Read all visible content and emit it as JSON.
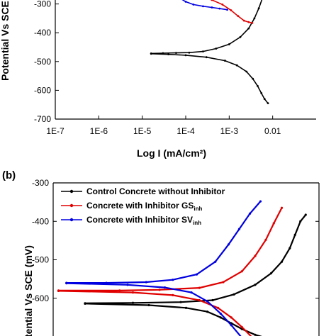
{
  "chart_data": [
    {
      "panel": "(a)",
      "type": "line",
      "xscale": "log",
      "xlim": [
        1e-07,
        0.1
      ],
      "ylim": [
        -700,
        -200
      ],
      "xticks": [
        1e-07,
        1e-06,
        1e-05,
        0.0001,
        0.001,
        0.01
      ],
      "xtick_labels": [
        "1E-7",
        "1E-6",
        "1E-5",
        "1E-4",
        "1E-3",
        "0.01"
      ],
      "yticks": [
        -300,
        -400,
        -500,
        -600,
        -700
      ],
      "ytick_labels": [
        "-300",
        "-400",
        "-500",
        "-600",
        "-700"
      ],
      "xlabel": "Log I (mA/cm²)",
      "ylabel": "Potential Vs SCE (mV)",
      "series": [
        {
          "color": "#000000",
          "points": [
            [
              1.6e-05,
              -472
            ],
            [
              3e-05,
              -471
            ],
            [
              6e-05,
              -470
            ],
            [
              0.00012,
              -469
            ],
            [
              0.00025,
              -465
            ],
            [
              0.0005,
              -455
            ],
            [
              0.001,
              -440
            ],
            [
              0.0018,
              -415
            ],
            [
              0.0028,
              -385
            ],
            [
              0.0038,
              -350
            ],
            [
              0.0048,
              -315
            ],
            [
              0.0058,
              -280
            ],
            [
              0.0068,
              -250
            ],
            [
              0.0078,
              -230
            ]
          ]
        },
        {
          "color": "#000000",
          "points": [
            [
              1.6e-05,
              -473
            ],
            [
              4e-05,
              -475
            ],
            [
              0.0001,
              -478
            ],
            [
              0.0003,
              -485
            ],
            [
              0.0008,
              -497
            ],
            [
              0.0015,
              -513
            ],
            [
              0.0025,
              -535
            ],
            [
              0.0035,
              -560
            ],
            [
              0.0045,
              -585
            ],
            [
              0.0055,
              -610
            ],
            [
              0.0065,
              -630
            ],
            [
              0.0078,
              -645
            ]
          ]
        },
        {
          "color": "#e00000",
          "points": [
            [
              8e-06,
              -255
            ],
            [
              2e-05,
              -256
            ],
            [
              5e-05,
              -258
            ],
            [
              0.0001,
              -263
            ],
            [
              0.0002,
              -272
            ],
            [
              0.0004,
              -286
            ],
            [
              0.0007,
              -302
            ],
            [
              0.0011,
              -322
            ],
            [
              0.0016,
              -342
            ],
            [
              0.0022,
              -358
            ],
            [
              0.0028,
              -363
            ],
            [
              0.0034,
              -366
            ]
          ]
        },
        {
          "color": "#0000e0",
          "points": [
            [
              4e-05,
              -255
            ],
            [
              5e-05,
              -262
            ],
            [
              7e-05,
              -278
            ],
            [
              0.0001,
              -292
            ],
            [
              0.00015,
              -302
            ],
            [
              0.00025,
              -308
            ],
            [
              0.0004,
              -312
            ],
            [
              0.0006,
              -316
            ],
            [
              0.0009,
              -320
            ]
          ]
        }
      ]
    },
    {
      "panel": "(b)",
      "type": "line",
      "ylim": [
        -700,
        -300
      ],
      "yticks": [
        -300,
        -400,
        -500,
        -600
      ],
      "ytick_labels": [
        "-300",
        "-400",
        "-500",
        "-600"
      ],
      "ylabel": "Potential Vs SCE (mV)",
      "legend_position": "top-right",
      "legend": [
        {
          "text": "Control Concrete without Inhibitor",
          "sub": "",
          "color": "#000000"
        },
        {
          "text": "Concrete with Inhibitor GS",
          "sub": "inh",
          "color": "#e00000"
        },
        {
          "text": "Concrete with Inhibitor SV",
          "sub": "inh",
          "color": "#0000e0"
        }
      ],
      "series": [
        {
          "color": "#000000",
          "points": [
            [
              0.12,
              -613
            ],
            [
              0.3,
              -612
            ],
            [
              0.48,
              -610
            ],
            [
              0.6,
              -605
            ],
            [
              0.68,
              -590
            ],
            [
              0.76,
              -565
            ],
            [
              0.82,
              -535
            ],
            [
              0.86,
              -505
            ],
            [
              0.89,
              -470
            ],
            [
              0.91,
              -435
            ],
            [
              0.93,
              -400
            ],
            [
              0.95,
              -383
            ]
          ]
        },
        {
          "color": "#000000",
          "points": [
            [
              0.12,
              -614
            ],
            [
              0.36,
              -618
            ],
            [
              0.5,
              -625
            ],
            [
              0.58,
              -635
            ],
            [
              0.63,
              -650
            ],
            [
              0.67,
              -665
            ],
            [
              0.71,
              -680
            ],
            [
              0.76,
              -695
            ],
            [
              0.8,
              -703
            ]
          ]
        },
        {
          "color": "#e00000",
          "points": [
            [
              0.02,
              -580
            ],
            [
              0.25,
              -580
            ],
            [
              0.4,
              -578
            ],
            [
              0.55,
              -573
            ],
            [
              0.64,
              -558
            ],
            [
              0.71,
              -530
            ],
            [
              0.76,
              -490
            ],
            [
              0.8,
              -448
            ],
            [
              0.83,
              -405
            ],
            [
              0.86,
              -365
            ]
          ]
        },
        {
          "color": "#e00000",
          "points": [
            [
              0.02,
              -581
            ],
            [
              0.3,
              -585
            ],
            [
              0.45,
              -592
            ],
            [
              0.55,
              -605
            ],
            [
              0.62,
              -625
            ],
            [
              0.67,
              -650
            ],
            [
              0.71,
              -675
            ],
            [
              0.75,
              -703
            ]
          ]
        },
        {
          "color": "#0000e0",
          "points": [
            [
              0.05,
              -560
            ],
            [
              0.2,
              -560
            ],
            [
              0.35,
              -558
            ],
            [
              0.45,
              -552
            ],
            [
              0.54,
              -538
            ],
            [
              0.61,
              -505
            ],
            [
              0.66,
              -460
            ],
            [
              0.7,
              -420
            ],
            [
              0.74,
              -380
            ],
            [
              0.78,
              -348
            ]
          ]
        },
        {
          "color": "#0000e0",
          "points": [
            [
              0.05,
              -561
            ],
            [
              0.28,
              -565
            ],
            [
              0.42,
              -572
            ],
            [
              0.52,
              -585
            ],
            [
              0.58,
              -608
            ],
            [
              0.63,
              -640
            ],
            [
              0.67,
              -670
            ],
            [
              0.71,
              -703
            ]
          ]
        }
      ]
    }
  ]
}
